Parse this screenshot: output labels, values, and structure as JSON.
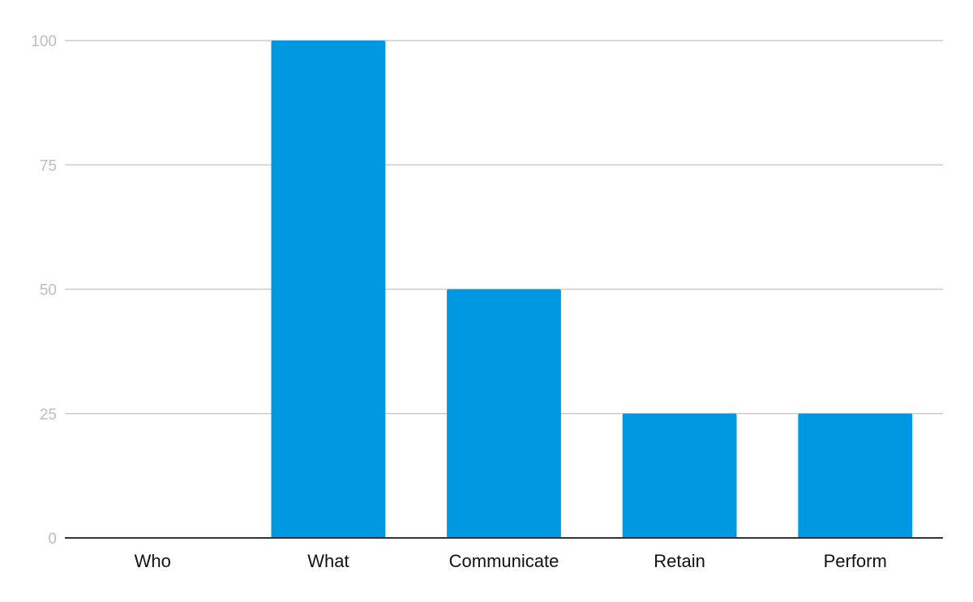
{
  "chart_data": {
    "type": "bar",
    "title": "",
    "xlabel": "",
    "ylabel": "",
    "categories": [
      "Who",
      "What",
      "Communicate",
      "Retain",
      "Perform"
    ],
    "values": [
      0,
      100,
      50,
      25,
      25
    ],
    "ylim": [
      0,
      100
    ],
    "y_ticks": [
      0,
      25,
      50,
      75,
      100
    ],
    "grid": true,
    "legend": "none",
    "bar_color": "#0098e0"
  }
}
